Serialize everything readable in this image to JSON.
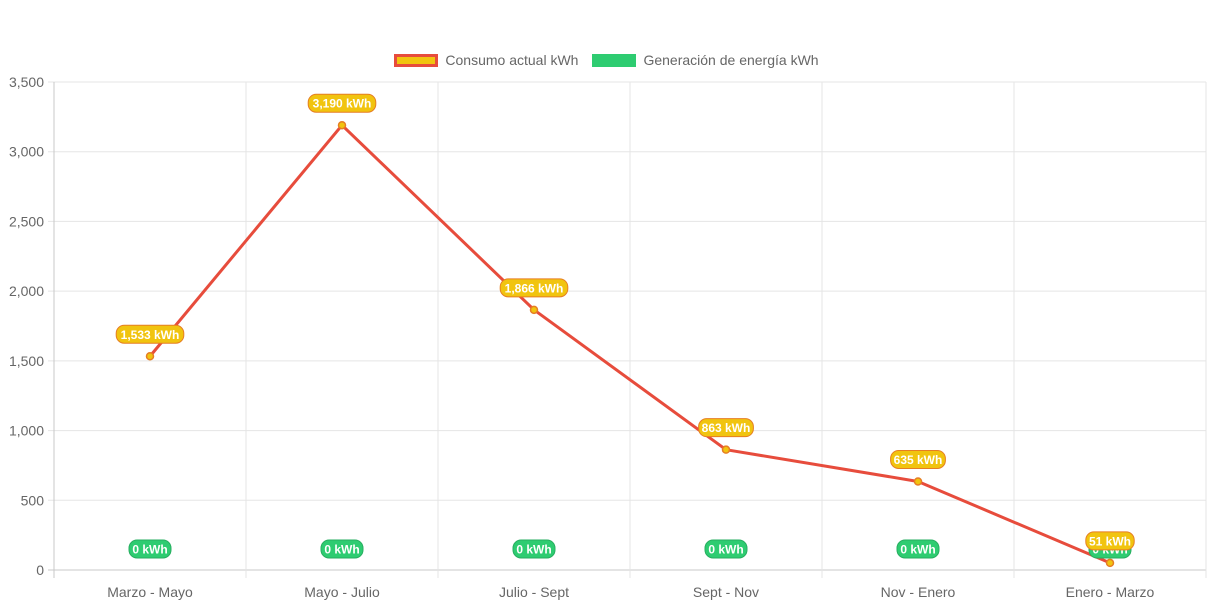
{
  "chart_data": {
    "type": "line",
    "title": "",
    "xlabel": "",
    "ylabel": "",
    "categories": [
      "Marzo - Mayo",
      "Mayo - Julio",
      "Julio - Sept",
      "Sept - Nov",
      "Nov - Enero",
      "Enero - Marzo"
    ],
    "ylim": [
      0,
      3500
    ],
    "yticks": [
      0,
      500,
      1000,
      1500,
      2000,
      2500,
      3000,
      3500
    ],
    "ytick_labels": [
      "0",
      "500",
      "1,000",
      "1,500",
      "2,000",
      "2,500",
      "3,000",
      "3,500"
    ],
    "grid": true,
    "legend_position": "top-center",
    "series": [
      {
        "name": "Consumo actual kWh",
        "values": [
          1533,
          3190,
          1866,
          863,
          635,
          51
        ],
        "data_labels": [
          "1,533 kWh",
          "3,190 kWh",
          "1,866 kWh",
          "863 kWh",
          "635 kWh",
          "51 kWh"
        ],
        "line_color": "#e74c3c",
        "fill_color": "#f1c40f",
        "label_border_color": "#e67e22"
      },
      {
        "name": "Generación de energía kWh",
        "values": [
          0,
          0,
          0,
          0,
          0,
          0
        ],
        "data_labels": [
          "0 kWh",
          "0 kWh",
          "0 kWh",
          "0 kWh",
          "0 kWh",
          "0 kWh"
        ],
        "line_color": "#2ecc71",
        "fill_color": "#2ecc71",
        "label_border_color": "#27ae60"
      }
    ]
  }
}
